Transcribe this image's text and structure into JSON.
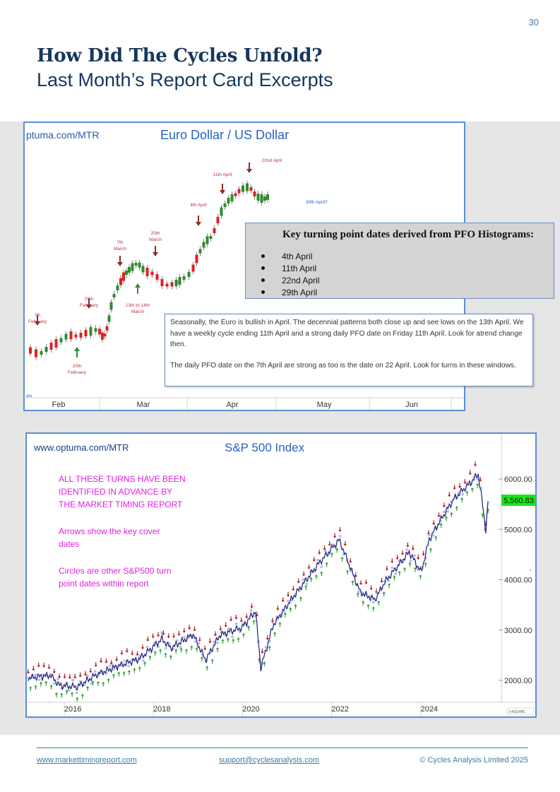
{
  "page_number": "30",
  "heading": {
    "title": "How Did The Cycles Unfold?",
    "subtitle": "Last Month’s Report Card Excerpts"
  },
  "eur_chart": {
    "watermark": "ptuma.com/MTR",
    "title": "Euro Dollar / US Dollar",
    "x_labels": [
      "Feb",
      "Mar",
      "Apr",
      "May",
      "Jun"
    ],
    "corner_label": "ary",
    "up_annotations": [
      {
        "text": [
          "20th",
          "February"
        ]
      },
      {
        "text": [
          "13th to 14th",
          "March"
        ]
      }
    ],
    "down_annotations": [
      {
        "text": [
          "7th",
          "February"
        ]
      },
      {
        "text": [
          "25th",
          "February"
        ]
      },
      {
        "text": [
          "7th",
          "March"
        ]
      },
      {
        "text": [
          "20th",
          "March"
        ]
      },
      {
        "text": [
          "4th April"
        ]
      },
      {
        "text": [
          "11th April"
        ]
      },
      {
        "text": [
          "22nd April"
        ]
      }
    ],
    "future_label": "30th April?",
    "colors": {
      "up": "#2e8b2e",
      "down": "#e02020",
      "arrow_down": "#8b2a2a",
      "arrow_up": "#2e8b2e",
      "label": "#c0304a"
    }
  },
  "pfo_box": {
    "heading": "Key turning point dates derived from PFO Histograms:",
    "dates": [
      "4th April",
      "11th April",
      "22nd April",
      "29th April"
    ]
  },
  "note_box": {
    "para1": "Seasonally, the Euro is bullish in April. The decennial patterns both close up and see lows on the 13th April. We have a weekly cycle ending 11th April and a strong daily PFO date on Friday 11th April. Look for atrend change then.",
    "para2": "The daily PFO date on the 7th April are strong as too is the date on 22 April. Look for turns in these windows."
  },
  "spx_chart": {
    "watermark": "www.optuma.com/MTR",
    "title": "S&P 500 Index",
    "y_labels": [
      "6000.00",
      "5000.00",
      "4000.00",
      "3000.00",
      "2000.00"
    ],
    "x_labels": [
      "2016",
      "2018",
      "2020",
      "2022",
      "2024"
    ],
    "last_price": "5,560.83",
    "corner_tag": "3.491148C",
    "notes": [
      "ALL THESE TURNS HAVE BEEN",
      "IDENTIFIED IN ADVANCE BY",
      "THE MARKET TIMING REPORT",
      "Arrows show the key cover",
      "dates",
      "Circles are other S&P500 turn",
      "point dates within report"
    ],
    "colors": {
      "line": "#1a1f7a",
      "note": "#e020e0",
      "price_bg": "#19e619",
      "arrow_down": "#b02020",
      "arrow_up": "#2ea02e"
    }
  },
  "footer": {
    "website": "www.markettimingreport.com",
    "email": "support@cyclesanalysis.com",
    "copyright": "© Cycles Analysis Limited 2025"
  }
}
